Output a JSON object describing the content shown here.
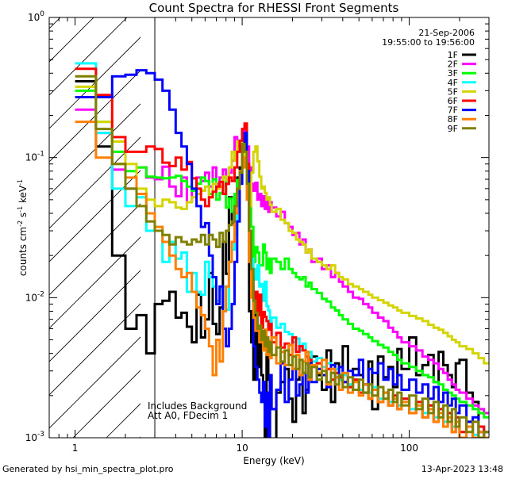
{
  "chart_data": {
    "type": "line",
    "title": "Count Spectra for RHESSI Front Segments",
    "xlabel": "Energy (keV)",
    "ylabel_parts": {
      "base": "counts cm",
      "exp1": "-2",
      "mid": " s",
      "exp2": "-1",
      "mid2": " keV",
      "exp3": "-1"
    },
    "x_scale": "log",
    "y_scale": "log",
    "xlim": [
      0.7,
      300
    ],
    "ylim": [
      0.001,
      1
    ],
    "x_ticks": [
      {
        "v": 1,
        "label": "1"
      },
      {
        "v": 10,
        "label": "10"
      },
      {
        "v": 100,
        "label": "100"
      }
    ],
    "y_ticks": [
      {
        "v": 1,
        "base": "10",
        "exp": "0"
      },
      {
        "v": 0.1,
        "base": "10",
        "exp": "-1"
      },
      {
        "v": 0.01,
        "base": "10",
        "exp": "-2"
      },
      {
        "v": 0.001,
        "base": "10",
        "exp": "-3"
      }
    ],
    "hatch_region_kev": [
      0.7,
      3
    ],
    "annotation_top": [
      "21-Sep-2006",
      "19:55:00 to 19:56:00"
    ],
    "annotation_bottom": [
      "Includes Background",
      "Att A0, FDecim 1"
    ],
    "footer_left": "Generated by hsi_min_spectra_plot.pro",
    "footer_right": "13-Apr-2023 13:48",
    "energy_edges_kev": [
      1,
      1.333,
      1.667,
      2,
      2.333,
      2.667,
      3,
      3.333,
      3.667,
      4,
      4.333,
      4.667,
      5,
      5.333,
      5.667,
      6,
      6.333,
      6.667,
      7,
      7.333,
      7.667,
      8,
      8.333,
      8.667,
      9,
      9.333,
      9.667,
      10,
      10.333,
      10.667,
      11,
      11.333,
      11.667,
      12,
      12.333,
      12.667,
      13,
      13.333,
      13.667,
      14,
      14.333,
      14.667,
      15,
      16,
      17,
      18,
      19,
      20,
      21,
      22,
      23,
      24,
      25,
      26,
      28,
      30,
      32,
      34,
      36,
      38,
      40,
      43,
      46,
      50,
      53,
      57,
      60,
      65,
      70,
      75,
      80,
      85,
      90,
      100,
      110,
      120,
      130,
      140,
      150,
      160,
      170,
      180,
      190,
      200,
      220,
      240,
      260,
      280,
      300
    ],
    "series": [
      {
        "name": "1F",
        "color": "#000000",
        "values": [
          0.35,
          0.12,
          0.02,
          0.006,
          0.0075,
          0.004,
          0.009,
          0.0095,
          0.011,
          0.0072,
          0.0078,
          0.0062,
          0.0048,
          0.0105,
          0.0052,
          0.007,
          0.015,
          0.0065,
          0.0055,
          0.0085,
          0.025,
          0.0148,
          0.052,
          0.034,
          0.055,
          0.072,
          0.085,
          0.122,
          0.14,
          0.078,
          0.008,
          0.0048,
          0.0026,
          0.0082,
          0.0032,
          0.0062,
          0.0028,
          0.0021,
          0.00092,
          0.0039,
          0.0026,
          0.00091,
          0.00092,
          0.0021,
          0.0025,
          0.0031,
          0.0019,
          0.0013,
          0.0026,
          0.0028,
          0.0015,
          0.0022,
          0.0037,
          0.0038,
          0.0028,
          0.0022,
          0.0042,
          0.0018,
          0.0034,
          0.0026,
          0.0045,
          0.0023,
          0.0031,
          0.0028,
          0.0021,
          0.0035,
          0.0016,
          0.0038,
          0.0027,
          0.0032,
          0.0023,
          0.0043,
          0.0031,
          0.0052,
          0.0028,
          0.0033,
          0.0039,
          0.0025,
          0.0041,
          0.0033,
          0.0028,
          0.0023,
          0.0034,
          0.0036,
          0.0021,
          0.0018,
          0.0012,
          0.0011
        ]
      },
      {
        "name": "2F",
        "color": "#ff00ff",
        "values": [
          0.22,
          0.15,
          0.082,
          0.06,
          0.085,
          0.072,
          0.07,
          0.086,
          0.062,
          0.053,
          0.072,
          0.048,
          0.058,
          0.072,
          0.068,
          0.078,
          0.062,
          0.085,
          0.065,
          0.072,
          0.082,
          0.065,
          0.078,
          0.095,
          0.14,
          0.12,
          0.13,
          0.155,
          0.165,
          0.12,
          0.085,
          0.065,
          0.058,
          0.066,
          0.05,
          0.055,
          0.045,
          0.053,
          0.043,
          0.049,
          0.041,
          0.048,
          0.044,
          0.038,
          0.041,
          0.034,
          0.032,
          0.028,
          0.029,
          0.024,
          0.026,
          0.021,
          0.022,
          0.018,
          0.019,
          0.016,
          0.017,
          0.014,
          0.015,
          0.013,
          0.012,
          0.011,
          0.01,
          0.0098,
          0.009,
          0.0085,
          0.0078,
          0.0072,
          0.0068,
          0.0061,
          0.0057,
          0.0052,
          0.0048,
          0.0045,
          0.0042,
          0.0038,
          0.0036,
          0.0034,
          0.0031,
          0.0029,
          0.0026,
          0.0024,
          0.0022,
          0.0021,
          0.0019,
          0.0017,
          0.0016,
          0.0015
        ]
      },
      {
        "name": "3F",
        "color": "#00ff00",
        "values": [
          0.3,
          0.18,
          0.11,
          0.08,
          0.085,
          0.073,
          0.072,
          0.071,
          0.072,
          0.074,
          0.068,
          0.062,
          0.058,
          0.065,
          0.072,
          0.068,
          0.055,
          0.07,
          0.05,
          0.056,
          0.072,
          0.044,
          0.051,
          0.041,
          0.055,
          0.069,
          0.075,
          0.122,
          0.12,
          0.086,
          0.062,
          0.032,
          0.018,
          0.023,
          0.021,
          0.017,
          0.017,
          0.024,
          0.021,
          0.016,
          0.019,
          0.015,
          0.019,
          0.018,
          0.016,
          0.019,
          0.016,
          0.015,
          0.014,
          0.0135,
          0.014,
          0.012,
          0.0128,
          0.0115,
          0.0108,
          0.0098,
          0.0094,
          0.0085,
          0.0081,
          0.0075,
          0.007,
          0.0065,
          0.006,
          0.0058,
          0.0055,
          0.0052,
          0.0049,
          0.0046,
          0.0044,
          0.0041,
          0.0039,
          0.0036,
          0.0034,
          0.0032,
          0.003,
          0.0028,
          0.0027,
          0.0025,
          0.0024,
          0.0022,
          0.0021,
          0.002,
          0.0019,
          0.0018,
          0.0017,
          0.0016,
          0.0015,
          0.0014
        ]
      },
      {
        "name": "4F",
        "color": "#00ffff",
        "values": [
          0.47,
          0.15,
          0.06,
          0.045,
          0.052,
          0.03,
          0.032,
          0.018,
          0.025,
          0.019,
          0.021,
          0.011,
          0.015,
          0.011,
          0.0105,
          0.018,
          0.014,
          0.012,
          0.0095,
          0.0115,
          0.012,
          0.0082,
          0.018,
          0.022,
          0.028,
          0.05,
          0.075,
          0.115,
          0.13,
          0.07,
          0.028,
          0.019,
          0.016,
          0.0135,
          0.017,
          0.012,
          0.0125,
          0.0095,
          0.013,
          0.0087,
          0.0081,
          0.0065,
          0.0072,
          0.0061,
          0.0065,
          0.0057,
          0.0055,
          0.0048,
          0.0051,
          0.0042,
          0.0047,
          0.0038,
          0.0041,
          0.0035,
          0.0037,
          0.0032,
          0.0034,
          0.0029,
          0.0031,
          0.0026,
          0.0028,
          0.0024,
          0.0026,
          0.0022,
          0.0024,
          0.0021,
          0.0023,
          0.0019,
          0.0021,
          0.0018,
          0.002,
          0.0017,
          0.0019,
          0.0016,
          0.0018,
          0.0015,
          0.0017,
          0.0014,
          0.0016,
          0.0013,
          0.0015,
          0.0012,
          0.0014,
          0.0011,
          0.0013,
          0.00105,
          0.0012,
          0.001
        ]
      },
      {
        "name": "5F",
        "color": "#d4d400",
        "values": [
          0.32,
          0.18,
          0.13,
          0.09,
          0.06,
          0.05,
          0.045,
          0.05,
          0.048,
          0.044,
          0.043,
          0.048,
          0.052,
          0.055,
          0.058,
          0.062,
          0.052,
          0.065,
          0.06,
          0.062,
          0.073,
          0.069,
          0.085,
          0.11,
          0.095,
          0.13,
          0.125,
          0.14,
          0.095,
          0.062,
          0.045,
          0.078,
          0.11,
          0.12,
          0.094,
          0.073,
          0.06,
          0.062,
          0.056,
          0.05,
          0.052,
          0.046,
          0.041,
          0.043,
          0.036,
          0.034,
          0.03,
          0.029,
          0.026,
          0.025,
          0.024,
          0.021,
          0.022,
          0.019,
          0.018,
          0.017,
          0.016,
          0.017,
          0.015,
          0.014,
          0.0135,
          0.0125,
          0.012,
          0.0115,
          0.011,
          0.0105,
          0.01,
          0.0096,
          0.0092,
          0.0088,
          0.0085,
          0.0081,
          0.0078,
          0.0074,
          0.0071,
          0.0068,
          0.0064,
          0.0061,
          0.0059,
          0.0056,
          0.0053,
          0.005,
          0.0048,
          0.0045,
          0.0043,
          0.004,
          0.0037,
          0.0034
        ]
      },
      {
        "name": "6F",
        "color": "#ff0000",
        "values": [
          0.43,
          0.28,
          0.14,
          0.11,
          0.11,
          0.12,
          0.115,
          0.092,
          0.087,
          0.1,
          0.082,
          0.093,
          0.071,
          0.06,
          0.05,
          0.045,
          0.052,
          0.057,
          0.062,
          0.067,
          0.055,
          0.065,
          0.072,
          0.068,
          0.085,
          0.11,
          0.132,
          0.16,
          0.175,
          0.09,
          0.03,
          0.012,
          0.009,
          0.011,
          0.0075,
          0.0105,
          0.0061,
          0.0079,
          0.0073,
          0.0068,
          0.0059,
          0.0065,
          0.0048,
          0.0056,
          0.0044,
          0.0047,
          0.0039,
          0.0052,
          0.0041,
          0.0045,
          0.0042,
          0.0038,
          0.0036,
          0.0032,
          0.0034,
          0.0028,
          0.0031,
          0.0026,
          0.0029,
          0.0027,
          0.0025,
          0.0023,
          0.0026,
          0.0021,
          0.0024,
          0.0019,
          0.0022,
          0.0018,
          0.0021,
          0.0017,
          0.002,
          0.0016,
          0.0019,
          0.0015,
          0.0018,
          0.0014,
          0.0017,
          0.0013,
          0.0016,
          0.0012,
          0.0015,
          0.0011,
          0.0014,
          0.0011,
          0.0013,
          0.001,
          0.0012,
          0.001
        ]
      },
      {
        "name": "7F",
        "color": "#0000ff",
        "values": [
          0.27,
          0.27,
          0.38,
          0.39,
          0.42,
          0.4,
          0.36,
          0.3,
          0.22,
          0.15,
          0.12,
          0.09,
          0.06,
          0.045,
          0.032,
          0.034,
          0.02,
          0.014,
          0.009,
          0.012,
          0.006,
          0.0045,
          0.006,
          0.009,
          0.018,
          0.035,
          0.065,
          0.12,
          0.15,
          0.08,
          0.03,
          0.014,
          0.0045,
          0.0032,
          0.0026,
          0.0021,
          0.0018,
          0.0025,
          0.0012,
          0.0021,
          0.001,
          0.0028,
          0.0016,
          0.0022,
          0.0034,
          0.0018,
          0.0026,
          0.0031,
          0.002,
          0.0024,
          0.0029,
          0.0021,
          0.0034,
          0.0025,
          0.0031,
          0.0028,
          0.0023,
          0.0033,
          0.0027,
          0.0032,
          0.0025,
          0.003,
          0.0028,
          0.0036,
          0.0024,
          0.0031,
          0.0029,
          0.0034,
          0.0026,
          0.0031,
          0.0024,
          0.0028,
          0.0022,
          0.0026,
          0.0021,
          0.0024,
          0.0019,
          0.0023,
          0.0018,
          0.0021,
          0.0017,
          0.0019,
          0.0015,
          0.0017,
          0.0013,
          0.0014,
          0.0011,
          0.001
        ]
      },
      {
        "name": "8F",
        "color": "#ff8000",
        "values": [
          0.18,
          0.1,
          0.09,
          0.072,
          0.055,
          0.04,
          0.032,
          0.025,
          0.02,
          0.016,
          0.014,
          0.015,
          0.011,
          0.0085,
          0.0075,
          0.006,
          0.0045,
          0.0028,
          0.005,
          0.0035,
          0.008,
          0.012,
          0.018,
          0.025,
          0.04,
          0.06,
          0.08,
          0.1,
          0.085,
          0.05,
          0.018,
          0.01,
          0.0072,
          0.0058,
          0.0063,
          0.0048,
          0.0055,
          0.0042,
          0.0059,
          0.0039,
          0.0049,
          0.0037,
          0.0052,
          0.0034,
          0.0041,
          0.0033,
          0.0046,
          0.0031,
          0.0039,
          0.0028,
          0.0035,
          0.0041,
          0.0026,
          0.0033,
          0.0029,
          0.0036,
          0.0024,
          0.0031,
          0.0027,
          0.0022,
          0.0029,
          0.0021,
          0.0025,
          0.002,
          0.0024,
          0.0019,
          0.0022,
          0.0018,
          0.0021,
          0.0017,
          0.0019,
          0.0016,
          0.0018,
          0.0015,
          0.0017,
          0.0014,
          0.0016,
          0.0013,
          0.0015,
          0.0012,
          0.0014,
          0.0011,
          0.0013,
          0.001,
          0.0012,
          0.001,
          0.0011,
          0.001
        ]
      },
      {
        "name": "9F",
        "color": "#808000",
        "values": [
          0.38,
          0.16,
          0.09,
          0.06,
          0.045,
          0.035,
          0.03,
          0.028,
          0.024,
          0.027,
          0.025,
          0.024,
          0.026,
          0.025,
          0.028,
          0.024,
          0.028,
          0.026,
          0.023,
          0.029,
          0.025,
          0.03,
          0.033,
          0.035,
          0.045,
          0.06,
          0.078,
          0.125,
          0.11,
          0.065,
          0.03,
          0.016,
          0.0095,
          0.0078,
          0.006,
          0.0063,
          0.005,
          0.0058,
          0.0045,
          0.0052,
          0.0041,
          0.0048,
          0.0039,
          0.0044,
          0.0035,
          0.0042,
          0.0033,
          0.0038,
          0.0031,
          0.0036,
          0.0029,
          0.0034,
          0.0027,
          0.0032,
          0.0026,
          0.003,
          0.0025,
          0.0029,
          0.0024,
          0.0028,
          0.0023,
          0.0027,
          0.0022,
          0.0026,
          0.0021,
          0.0024,
          0.002,
          0.0023,
          0.0019,
          0.0022,
          0.0018,
          0.0021,
          0.0017,
          0.002,
          0.0016,
          0.0019,
          0.0015,
          0.0018,
          0.0014,
          0.0017,
          0.0013,
          0.0016,
          0.0012,
          0.0014,
          0.0011,
          0.0013,
          0.001,
          0.0011
        ]
      }
    ]
  }
}
